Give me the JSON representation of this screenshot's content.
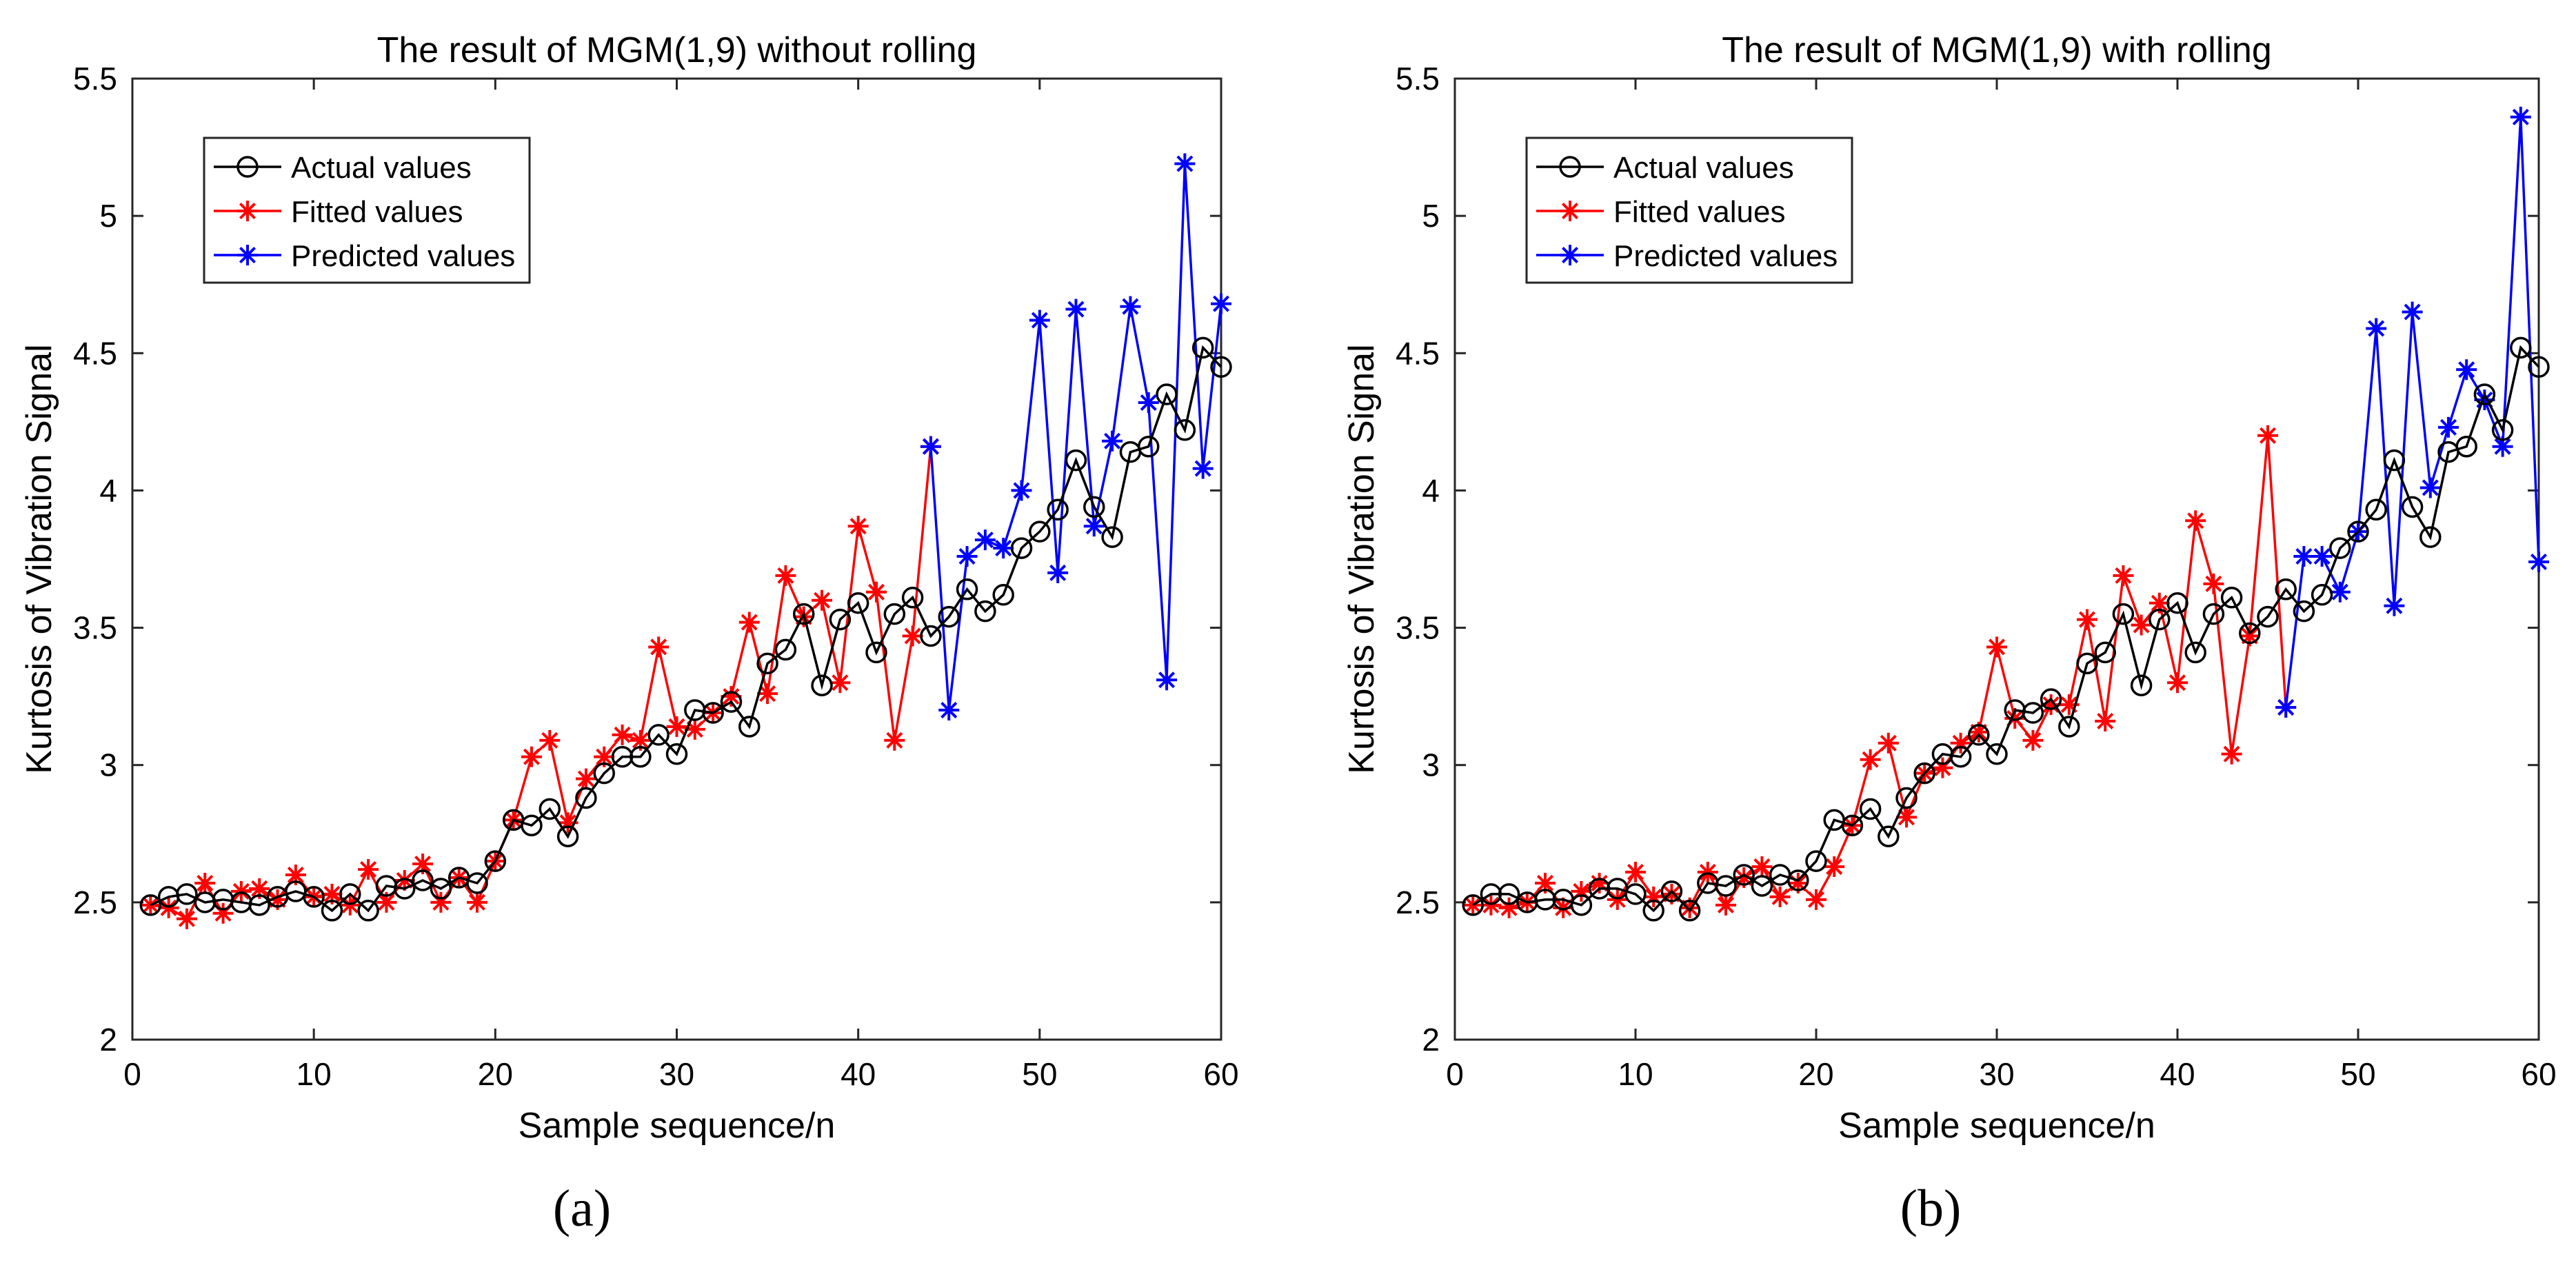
{
  "colors": {
    "actual": "#000000",
    "fitted": "#ff0000",
    "predicted": "#0000ff",
    "axis": "#262626"
  },
  "captions": {
    "a": "(a)",
    "b": "(b)"
  },
  "chart_data": [
    {
      "type": "line",
      "title": "The result of MGM(1,9) without rolling",
      "xlabel": "Sample sequence/n",
      "ylabel": "Kurtosis of Vibration Signal",
      "xlim": [
        0,
        60
      ],
      "ylim": [
        2,
        5.5
      ],
      "xticks": [
        0,
        10,
        20,
        30,
        40,
        50,
        60
      ],
      "yticks": [
        2,
        2.5,
        3,
        3.5,
        4,
        4.5,
        5,
        5.5
      ],
      "xtick_labels": [
        "0",
        "10",
        "20",
        "30",
        "40",
        "50",
        "60"
      ],
      "ytick_labels": [
        "2",
        "2.5",
        "3",
        "3.5",
        "4",
        "4.5",
        "5",
        "5.5"
      ],
      "grid": false,
      "legend_position": "top-left",
      "series": [
        {
          "name": "Actual values",
          "marker": "circle",
          "color": "#000000",
          "x": [
            1,
            2,
            3,
            4,
            5,
            6,
            7,
            8,
            9,
            10,
            11,
            12,
            13,
            14,
            15,
            16,
            17,
            18,
            19,
            20,
            21,
            22,
            23,
            24,
            25,
            26,
            27,
            28,
            29,
            30,
            31,
            32,
            33,
            34,
            35,
            36,
            37,
            38,
            39,
            40,
            41,
            42,
            43,
            44,
            45,
            46,
            47,
            48,
            49,
            50,
            51,
            52,
            53,
            54,
            55,
            56,
            57,
            58,
            59,
            60
          ],
          "values": [
            2.49,
            2.52,
            2.53,
            2.5,
            2.51,
            2.5,
            2.49,
            2.52,
            2.54,
            2.52,
            2.47,
            2.53,
            2.47,
            2.56,
            2.55,
            2.58,
            2.55,
            2.59,
            2.57,
            2.65,
            2.8,
            2.78,
            2.84,
            2.74,
            2.88,
            2.97,
            3.03,
            3.03,
            3.11,
            3.04,
            3.2,
            3.19,
            3.23,
            3.14,
            3.37,
            3.42,
            3.55,
            3.29,
            3.53,
            3.59,
            3.41,
            3.55,
            3.61,
            3.47,
            3.54,
            3.64,
            3.56,
            3.62,
            3.79,
            3.85,
            3.93,
            4.11,
            3.94,
            3.83,
            4.14,
            4.16,
            4.35,
            4.22,
            4.52,
            4.45
          ]
        },
        {
          "name": "Fitted values",
          "marker": "asterisk",
          "color": "#ff0000",
          "x": [
            1,
            2,
            3,
            4,
            5,
            6,
            7,
            8,
            9,
            10,
            11,
            12,
            13,
            14,
            15,
            16,
            17,
            18,
            19,
            20,
            21,
            22,
            23,
            24,
            25,
            26,
            27,
            28,
            29,
            30,
            31,
            32,
            33,
            34,
            35,
            36,
            37,
            38,
            39,
            40,
            41,
            42,
            43,
            44
          ],
          "values": [
            2.49,
            2.48,
            2.44,
            2.57,
            2.46,
            2.54,
            2.55,
            2.51,
            2.6,
            2.52,
            2.53,
            2.49,
            2.62,
            2.5,
            2.58,
            2.64,
            2.5,
            2.59,
            2.5,
            2.65,
            2.8,
            3.03,
            3.09,
            2.79,
            2.95,
            3.03,
            3.11,
            3.09,
            3.43,
            3.14,
            3.13,
            3.19,
            3.25,
            3.52,
            3.26,
            3.69,
            3.54,
            3.6,
            3.3,
            3.87,
            3.63,
            3.09,
            3.47,
            4.16
          ]
        },
        {
          "name": "Predicted values",
          "marker": "asterisk",
          "color": "#0000ff",
          "x": [
            44,
            45,
            46,
            47,
            48,
            49,
            50,
            51,
            52,
            53,
            54,
            55,
            56,
            57,
            58,
            59,
            60
          ],
          "values": [
            4.16,
            3.2,
            3.76,
            3.82,
            3.79,
            4.0,
            4.62,
            3.7,
            4.66,
            3.87,
            4.18,
            4.67,
            4.32,
            3.31,
            5.19,
            4.08,
            4.68
          ]
        }
      ],
      "legend": [
        "Actual values",
        "Fitted values",
        "Predicted values"
      ]
    },
    {
      "type": "line",
      "title": "The result of MGM(1,9) with rolling",
      "xlabel": "Sample sequence/n",
      "ylabel": "Kurtosis of Vibration Signal",
      "xlim": [
        0,
        60
      ],
      "ylim": [
        2,
        5.5
      ],
      "xticks": [
        0,
        10,
        20,
        30,
        40,
        50,
        60
      ],
      "yticks": [
        2,
        2.5,
        3,
        3.5,
        4,
        4.5,
        5,
        5.5
      ],
      "xtick_labels": [
        "0",
        "10",
        "20",
        "30",
        "40",
        "50",
        "60"
      ],
      "ytick_labels": [
        "2",
        "2.5",
        "3",
        "3.5",
        "4",
        "4.5",
        "5",
        "5.5"
      ],
      "grid": false,
      "legend_position": "top-left",
      "series": [
        {
          "name": "Actual values",
          "marker": "circle",
          "color": "#000000",
          "x": [
            1,
            2,
            3,
            4,
            5,
            6,
            7,
            8,
            9,
            10,
            11,
            12,
            13,
            14,
            15,
            16,
            17,
            18,
            19,
            20,
            21,
            22,
            23,
            24,
            25,
            26,
            27,
            28,
            29,
            30,
            31,
            32,
            33,
            34,
            35,
            36,
            37,
            38,
            39,
            40,
            41,
            42,
            43,
            44,
            45,
            46,
            47,
            48,
            49,
            50,
            51,
            52,
            53,
            54,
            55,
            56,
            57,
            58,
            59,
            60
          ],
          "values": [
            2.49,
            2.53,
            2.53,
            2.5,
            2.51,
            2.51,
            2.49,
            2.55,
            2.55,
            2.53,
            2.47,
            2.54,
            2.47,
            2.57,
            2.56,
            2.6,
            2.56,
            2.6,
            2.58,
            2.65,
            2.8,
            2.78,
            2.84,
            2.74,
            2.88,
            2.97,
            3.04,
            3.03,
            3.11,
            3.04,
            3.2,
            3.19,
            3.24,
            3.14,
            3.37,
            3.41,
            3.55,
            3.29,
            3.53,
            3.59,
            3.41,
            3.55,
            3.61,
            3.48,
            3.54,
            3.64,
            3.56,
            3.62,
            3.79,
            3.85,
            3.93,
            4.11,
            3.94,
            3.83,
            4.14,
            4.16,
            4.35,
            4.22,
            4.52,
            4.45
          ]
        },
        {
          "name": "Fitted values",
          "marker": "asterisk",
          "color": "#ff0000",
          "x": [
            1,
            2,
            3,
            4,
            5,
            6,
            7,
            8,
            9,
            10,
            11,
            12,
            13,
            14,
            15,
            16,
            17,
            18,
            19,
            20,
            21,
            22,
            23,
            24,
            25,
            26,
            27,
            28,
            29,
            30,
            31,
            32,
            33,
            34,
            35,
            36,
            37,
            38,
            39,
            40,
            41,
            42,
            43,
            44,
            45,
            46
          ],
          "values": [
            2.49,
            2.49,
            2.48,
            2.5,
            2.57,
            2.48,
            2.54,
            2.57,
            2.51,
            2.61,
            2.52,
            2.53,
            2.48,
            2.61,
            2.49,
            2.59,
            2.63,
            2.52,
            2.57,
            2.51,
            2.63,
            2.78,
            3.02,
            3.08,
            2.81,
            2.97,
            2.99,
            3.08,
            3.12,
            3.43,
            3.17,
            3.09,
            3.22,
            3.22,
            3.53,
            3.16,
            3.69,
            3.51,
            3.59,
            3.3,
            3.89,
            3.66,
            3.04,
            3.47,
            4.2,
            3.21
          ]
        },
        {
          "name": "Predicted values",
          "marker": "asterisk",
          "color": "#0000ff",
          "x": [
            46,
            47,
            48,
            49,
            50,
            51,
            52,
            53,
            54,
            55,
            56,
            57,
            58,
            59,
            60
          ],
          "values": [
            3.21,
            3.76,
            3.76,
            3.63,
            3.85,
            4.59,
            3.58,
            4.65,
            4.01,
            4.23,
            4.44,
            4.33,
            4.16,
            5.36,
            3.74
          ]
        }
      ],
      "legend": [
        "Actual values",
        "Fitted values",
        "Predicted values"
      ]
    }
  ]
}
